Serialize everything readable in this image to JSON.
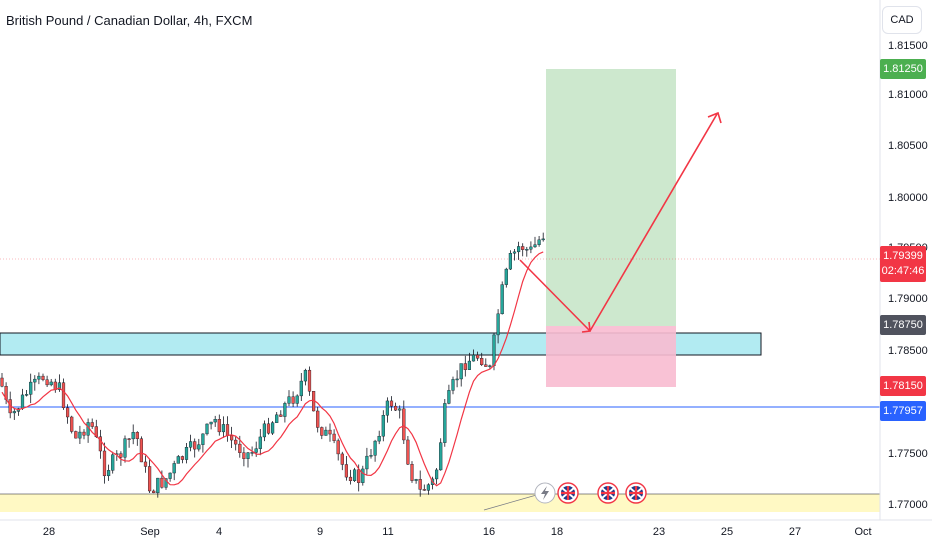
{
  "header": {
    "title": "British Pound / Canadian Dollar, 4h, FXCM",
    "currency_button": "CAD"
  },
  "y_axis": {
    "ticks": [
      "1.81500",
      "1.81000",
      "1.80500",
      "1.80000",
      "1.79500",
      "1.79000",
      "1.78500",
      "1.77500",
      "1.77000"
    ]
  },
  "price_tags": {
    "target": "1.81250",
    "current_price": "1.79399",
    "countdown": "02:47:46",
    "entry": "1.78750",
    "stop": "1.78150",
    "blue_line": "1.77957"
  },
  "x_axis": {
    "labels": [
      "28",
      "Sep",
      "4",
      "9",
      "11",
      "16",
      "18",
      "23",
      "25",
      "27",
      "Oct"
    ]
  },
  "colors": {
    "up_candle": "#26a69a",
    "down_candle": "#ef5350",
    "moving_average": "#f23645",
    "target_zone": "#c8e6c9",
    "stop_zone": "#f8bbd0",
    "support_zone": "#b2ebf2",
    "bottom_zone": "#fff9c4",
    "blue_line": "#2962ff",
    "arrow": "#f23645"
  },
  "icons": [
    "lightning-icon",
    "uk-flag-icon",
    "uk-flag-icon",
    "uk-flag-icon"
  ]
}
